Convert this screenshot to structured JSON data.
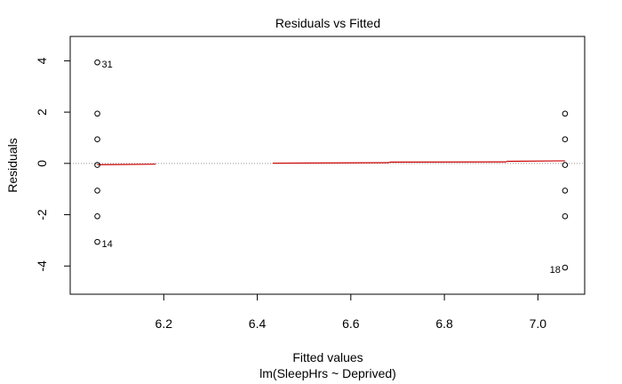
{
  "chart_data": {
    "type": "scatter",
    "title": "Residuals vs Fitted",
    "xlabel": "Fitted values",
    "subtitle": "lm(SleepHrs ~ Deprived)",
    "ylabel": "Residuals",
    "xlim": [
      6.0,
      7.1
    ],
    "ylim": [
      -5.1,
      4.95
    ],
    "xticks": [
      6.2,
      6.4,
      6.6,
      6.8,
      7.0
    ],
    "xtick_labels": [
      "6.2",
      "6.4",
      "6.6",
      "6.8",
      "7.0"
    ],
    "yticks": [
      -4,
      -2,
      0,
      2,
      4
    ],
    "ytick_labels": [
      "-4",
      "-2",
      "0",
      "2",
      "4"
    ],
    "grid": false,
    "points": [
      {
        "x": 6.058,
        "y": 3.94
      },
      {
        "x": 6.058,
        "y": 1.94
      },
      {
        "x": 6.058,
        "y": 0.94
      },
      {
        "x": 6.058,
        "y": -0.06
      },
      {
        "x": 6.058,
        "y": -1.06
      },
      {
        "x": 6.058,
        "y": -2.06
      },
      {
        "x": 6.058,
        "y": -3.06
      },
      {
        "x": 7.058,
        "y": 1.94
      },
      {
        "x": 7.058,
        "y": 0.94
      },
      {
        "x": 7.058,
        "y": -0.06
      },
      {
        "x": 7.058,
        "y": -1.06
      },
      {
        "x": 7.058,
        "y": -2.06
      },
      {
        "x": 7.058,
        "y": -4.06
      }
    ],
    "point_labels": [
      {
        "text": "31",
        "x": 6.058,
        "y": 3.94,
        "side": "right"
      },
      {
        "text": "14",
        "x": 6.058,
        "y": -3.06,
        "side": "right"
      },
      {
        "text": "18",
        "x": 7.058,
        "y": -4.06,
        "side": "left"
      }
    ],
    "smooth_line": {
      "color": "#cc0000",
      "segments": [
        {
          "x": [
            6.058,
            6.183
          ],
          "y": [
            -0.05,
            -0.03
          ]
        },
        {
          "x": [
            6.433,
            6.683
          ],
          "y": [
            0.01,
            0.03
          ]
        },
        {
          "x": [
            6.683,
            6.933
          ],
          "y": [
            0.05,
            0.06
          ]
        },
        {
          "x": [
            6.933,
            7.058
          ],
          "y": [
            0.08,
            0.1
          ]
        }
      ]
    },
    "reference_line": {
      "y": 0,
      "color": "#999999",
      "style": "dotted"
    }
  }
}
